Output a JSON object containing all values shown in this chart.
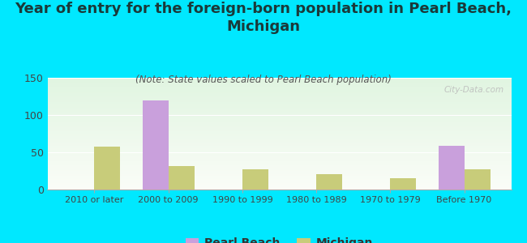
{
  "title": "Year of entry for the foreign-born population in Pearl Beach,\nMichigan",
  "subtitle": "(Note: State values scaled to Pearl Beach population)",
  "categories": [
    "2010 or later",
    "2000 to 2009",
    "1990 to 1999",
    "1980 to 1989",
    "1970 to 1979",
    "Before 1970"
  ],
  "pearl_beach_values": [
    0,
    120,
    0,
    0,
    0,
    59
  ],
  "michigan_values": [
    58,
    32,
    27,
    21,
    15,
    27
  ],
  "pearl_beach_color": "#c9a0dc",
  "michigan_color": "#c8cc7a",
  "background_color": "#00e8ff",
  "ylim": [
    0,
    150
  ],
  "yticks": [
    0,
    50,
    100,
    150
  ],
  "bar_width": 0.35,
  "title_fontsize": 13,
  "subtitle_fontsize": 8.5,
  "legend_fontsize": 10,
  "watermark": "City-Data.com",
  "grid_color": "#ffffff",
  "tick_label_color": "#444444"
}
